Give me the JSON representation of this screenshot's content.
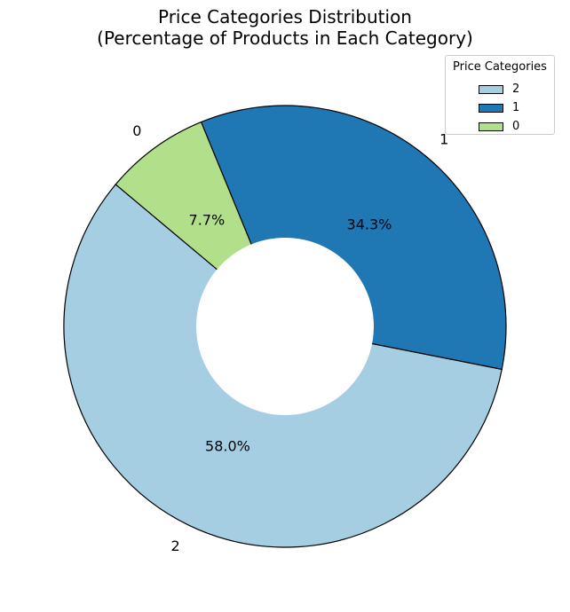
{
  "chart_data": {
    "type": "pie",
    "donut": true,
    "title_lines": [
      "Price Categories Distribution",
      "(Percentage of Products in Each Category)"
    ],
    "categories": [
      "2",
      "1",
      "0"
    ],
    "values": [
      58.0,
      34.3,
      7.7
    ],
    "percent_labels": [
      "58.0%",
      "34.3%",
      "7.7%"
    ],
    "colors": [
      "#a6cee3",
      "#1f78b4",
      "#b2df8a"
    ],
    "edge_color": "#000000",
    "start_angle_deg": 140,
    "direction": "counterclockwise",
    "legend": {
      "title": "Price Categories",
      "placement": "top-right",
      "entries": [
        "2",
        "1",
        "0"
      ]
    }
  }
}
